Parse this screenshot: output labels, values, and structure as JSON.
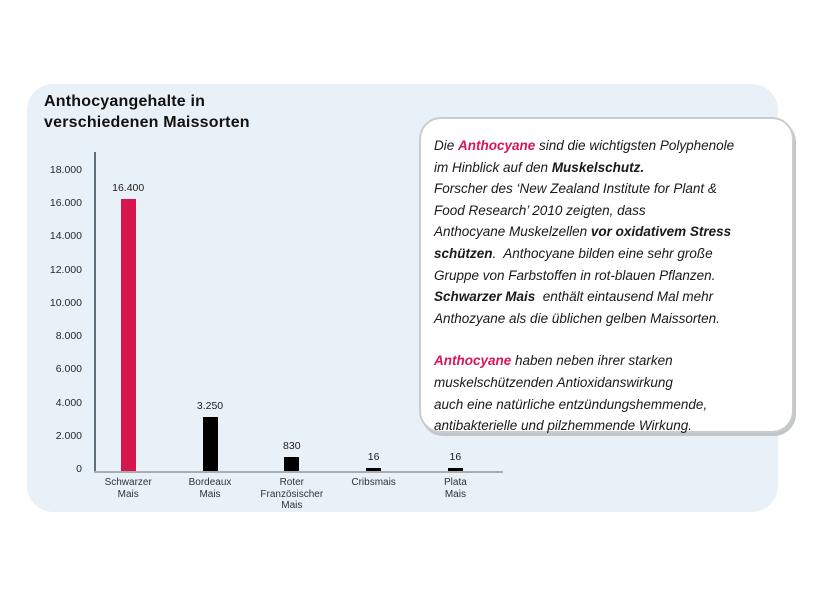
{
  "header": {
    "title": "Anthocyangehalte in\nverschiedenen Maissorten"
  },
  "colors": {
    "accent_pink_text": "#d6175a",
    "accent_pink_bar": "#d5164f",
    "bar_black": "#000000",
    "panel_bg": "#e9f1f8",
    "axis_gray": "#a9adb2",
    "y_axis_dark": "#5f6f7a"
  },
  "chart_data": {
    "type": "bar",
    "title": "Anthocyangehalte in verschiedenen Maissorten",
    "categories": [
      "Schwarzer\nMais",
      "Bordeaux\nMais",
      "Roter\nFranzösischer\nMais",
      "Cribsmais",
      "Plata\nMais"
    ],
    "values": [
      16400,
      3250,
      830,
      16,
      16
    ],
    "value_labels": [
      "16.400",
      "3.250",
      "830",
      "16",
      "16"
    ],
    "bar_colors": [
      "#d5164f",
      "#000000",
      "#000000",
      "#000000",
      "#000000"
    ],
    "xlabel": "",
    "ylabel": "",
    "ylim": [
      0,
      18000
    ],
    "ytick_values": [
      0,
      2000,
      4000,
      6000,
      8000,
      10000,
      12000,
      14000,
      16000,
      18000
    ],
    "ytick_labels": [
      "0",
      "2.000",
      "4.000",
      "6.000",
      "8.000",
      "10.000",
      "12.000",
      "14.000",
      "16.000",
      "18.000"
    ],
    "grid": false,
    "legend": "none"
  },
  "textbox": {
    "paragraphs": [
      {
        "lines": [
          [
            {
              "t": "Die ",
              "s": ""
            },
            {
              "t": "Anthocyane",
              "s": "pink"
            },
            {
              "t": " sind die wichtigsten Polyphenole",
              "s": ""
            }
          ],
          [
            {
              "t": "im Hinblick auf den ",
              "s": ""
            },
            {
              "t": "Muskelschutz.",
              "s": "bold"
            }
          ],
          [
            {
              "t": "Forscher des ‘New Zealand Institute for Plant &",
              "s": ""
            }
          ],
          [
            {
              "t": "Food Research’ 2010 zeigten, dass",
              "s": ""
            }
          ],
          [
            {
              "t": "Anthocyane Muskelzellen ",
              "s": ""
            },
            {
              "t": "vor oxidativem Stress",
              "s": "bold"
            }
          ],
          [
            {
              "t": "schützen",
              "s": "bold"
            },
            {
              "t": ".  Anthocyane bilden eine sehr große",
              "s": ""
            }
          ],
          [
            {
              "t": "Gruppe von Farbstoffen in rot-blauen Pflanzen.",
              "s": ""
            }
          ],
          [
            {
              "t": "Schwarzer Mais",
              "s": "bold"
            },
            {
              "t": "  enthält eintausend Mal mehr",
              "s": ""
            }
          ],
          [
            {
              "t": "Anthozyane als die üblichen gelben Maissorten.",
              "s": ""
            }
          ]
        ]
      },
      {
        "lines": [
          [
            {
              "t": "Anthocyane",
              "s": "pink"
            },
            {
              "t": " haben neben ihrer starken",
              "s": ""
            }
          ],
          [
            {
              "t": "muskelschützenden Antioxidanswirkung",
              "s": ""
            }
          ],
          [
            {
              "t": "auch eine natürliche entzündungshemmende,",
              "s": ""
            }
          ],
          [
            {
              "t": "antibakterielle und pilzhemmende Wirkung.",
              "s": ""
            }
          ]
        ]
      }
    ]
  }
}
